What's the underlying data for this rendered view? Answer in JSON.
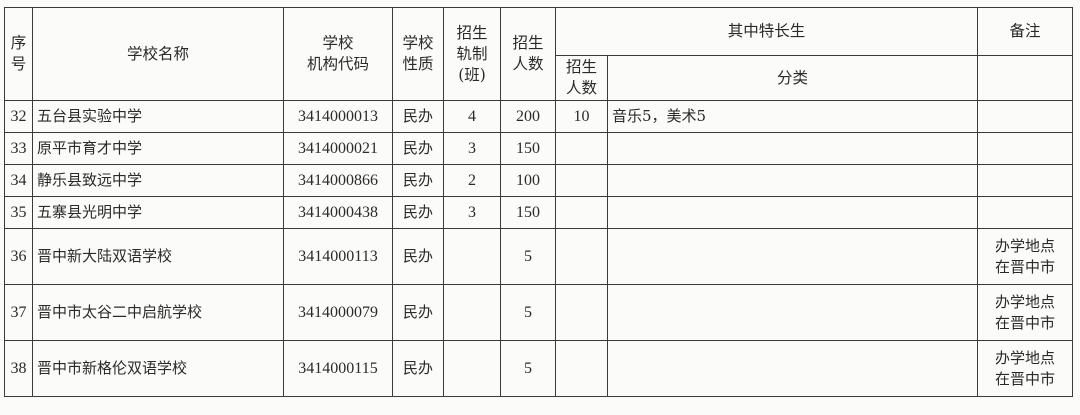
{
  "headers": {
    "seq": "序号",
    "school_name": "学校名称",
    "school_code": [
      "学校",
      "机构代码"
    ],
    "school_nature": [
      "学校",
      "性质"
    ],
    "classes": [
      "招生",
      "轨制",
      "(班)"
    ],
    "enrollment": [
      "招生",
      "人数"
    ],
    "special_group": "其中特长生",
    "special_count": [
      "招生",
      "人数"
    ],
    "special_category": "分类",
    "remarks": "备注"
  },
  "rows": [
    {
      "seq": "32",
      "name": "五台县实验中学",
      "code": "3414000013",
      "nature": "民办",
      "classes": "4",
      "enrollment": "200",
      "special_count": "10",
      "category": "音乐5，美术5",
      "remarks": [
        "",
        ""
      ]
    },
    {
      "seq": "33",
      "name": "原平市育才中学",
      "code": "3414000021",
      "nature": "民办",
      "classes": "3",
      "enrollment": "150",
      "special_count": "",
      "category": "",
      "remarks": [
        "",
        ""
      ]
    },
    {
      "seq": "34",
      "name": "静乐县致远中学",
      "code": "3414000866",
      "nature": "民办",
      "classes": "2",
      "enrollment": "100",
      "special_count": "",
      "category": "",
      "remarks": [
        "",
        ""
      ]
    },
    {
      "seq": "35",
      "name": "五寨县光明中学",
      "code": "3414000438",
      "nature": "民办",
      "classes": "3",
      "enrollment": "150",
      "special_count": "",
      "category": "",
      "remarks": [
        "",
        ""
      ]
    },
    {
      "seq": "36",
      "name": "晋中新大陆双语学校",
      "code": "3414000113",
      "nature": "民办",
      "classes": "",
      "enrollment": "5",
      "special_count": "",
      "category": "",
      "remarks": [
        "办学地点",
        "在晋中市"
      ]
    },
    {
      "seq": "37",
      "name": "晋中市太谷二中启航学校",
      "code": "3414000079",
      "nature": "民办",
      "classes": "",
      "enrollment": "5",
      "special_count": "",
      "category": "",
      "remarks": [
        "办学地点",
        "在晋中市"
      ]
    },
    {
      "seq": "38",
      "name": "晋中市新格伦双语学校",
      "code": "3414000115",
      "nature": "民办",
      "classes": "",
      "enrollment": "5",
      "special_count": "",
      "category": "",
      "remarks": [
        "办学地点",
        "在晋中市"
      ]
    }
  ]
}
